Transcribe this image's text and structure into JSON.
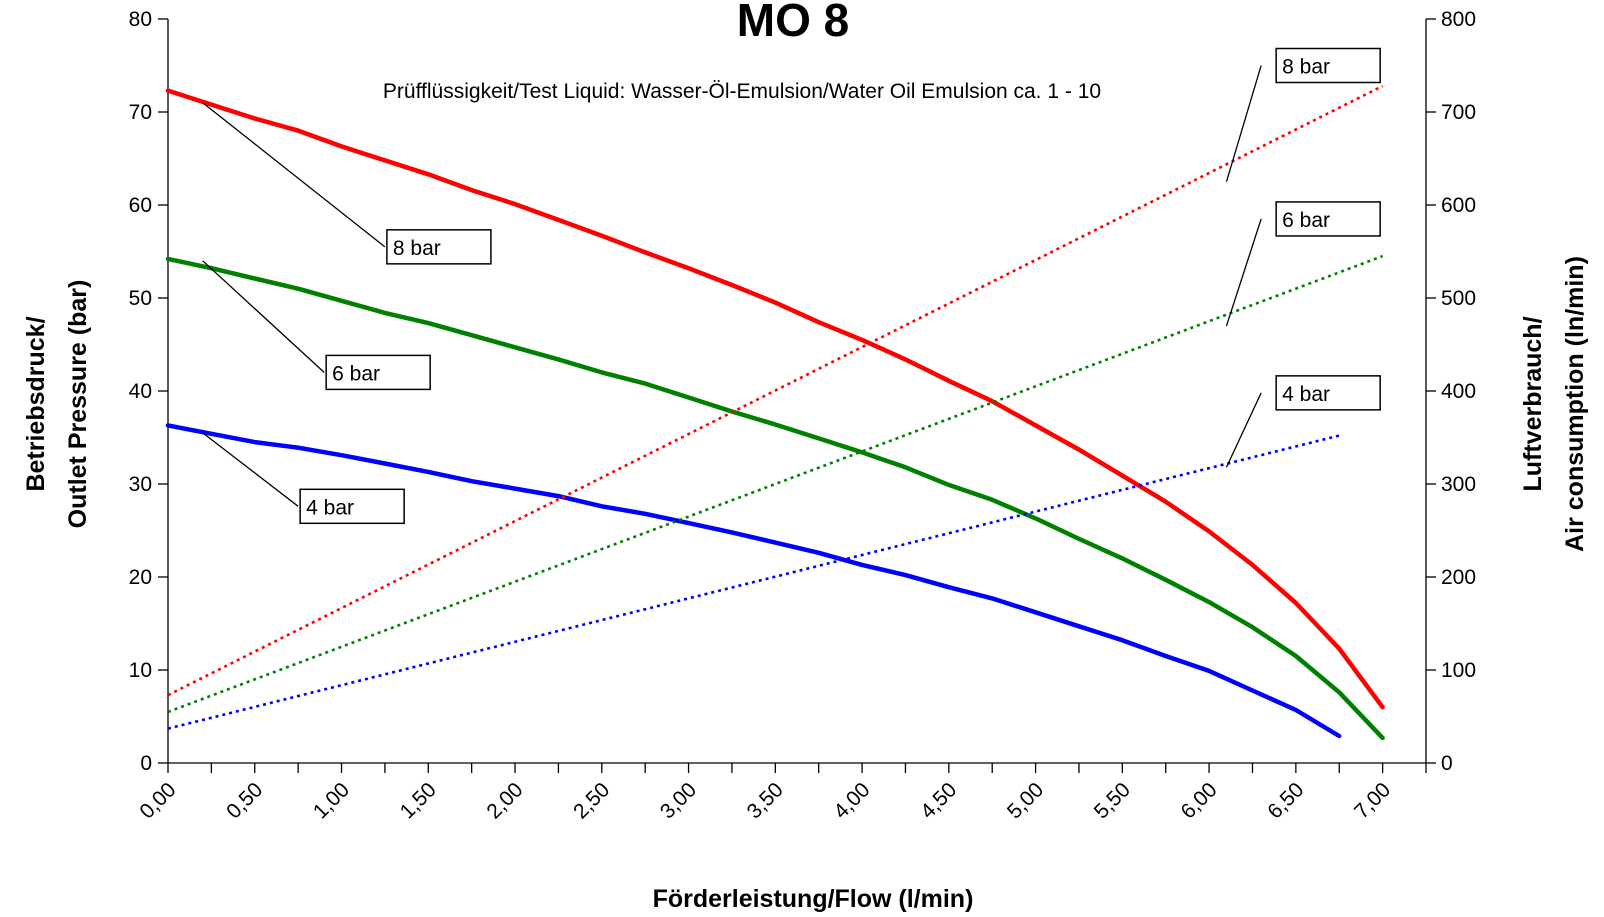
{
  "chart_data": {
    "type": "line",
    "title": "MO 8",
    "subtitle": "Prüfflüssigkeit/Test Liquid: Wasser-Öl-Emulsion/Water Oil Emulsion ca. 1 - 10",
    "xlabel": "Förderleistung/Flow (l/min)",
    "ylabel_left": [
      "Betriebsdruck/",
      "Outlet Pressure (bar)"
    ],
    "ylabel_right": [
      "Luftverbrauch/",
      "Air consumption (ln/min)"
    ],
    "xlim": [
      0,
      7.25
    ],
    "ylim_left": [
      0,
      80
    ],
    "ylim_right": [
      0,
      800
    ],
    "x_ticks": [
      "0,00",
      "0,50",
      "1,00",
      "1,50",
      "2,00",
      "2,50",
      "3,00",
      "3,50",
      "4,00",
      "4,50",
      "5,00",
      "5,50",
      "6,00",
      "6,50",
      "7,00"
    ],
    "y_left_ticks": [
      "0",
      "10",
      "20",
      "30",
      "40",
      "50",
      "60",
      "70",
      "80"
    ],
    "y_right_ticks": [
      "0",
      "100",
      "200",
      "300",
      "400",
      "500",
      "600",
      "700",
      "800"
    ],
    "grid": false,
    "series": [
      {
        "name": "8 bar",
        "axis": "left",
        "style": "solid",
        "color": "#ff0000",
        "x": [
          0,
          0.25,
          0.5,
          0.75,
          1,
          1.25,
          1.5,
          1.75,
          2,
          2.25,
          2.5,
          2.75,
          3,
          3.25,
          3.5,
          3.75,
          4,
          4.25,
          4.5,
          4.75,
          5,
          5.25,
          5.5,
          5.75,
          6,
          6.25,
          6.5,
          6.75,
          7
        ],
        "y": [
          72.3,
          70.8,
          69.3,
          68,
          66.3,
          64.8,
          63.3,
          61.6,
          60.1,
          58.4,
          56.7,
          54.9,
          53.2,
          51.4,
          49.5,
          47.4,
          45.5,
          43.4,
          41.1,
          38.9,
          36.3,
          33.7,
          30.9,
          28.1,
          24.9,
          21.3,
          17.2,
          12.3,
          6
        ]
      },
      {
        "name": "6 bar",
        "axis": "left",
        "style": "solid",
        "color": "#008000",
        "x": [
          0,
          0.25,
          0.5,
          0.75,
          1,
          1.25,
          1.5,
          1.75,
          2,
          2.25,
          2.5,
          2.75,
          3,
          3.25,
          3.5,
          3.75,
          4,
          4.25,
          4.5,
          4.75,
          5,
          5.25,
          5.5,
          5.75,
          6,
          6.25,
          6.5,
          6.75,
          7
        ],
        "y": [
          54.2,
          53.2,
          52.1,
          51,
          49.7,
          48.4,
          47.3,
          46,
          44.7,
          43.4,
          42,
          40.8,
          39.3,
          37.8,
          36.4,
          34.9,
          33.4,
          31.8,
          29.9,
          28.3,
          26.3,
          24.1,
          22,
          19.7,
          17.3,
          14.6,
          11.5,
          7.6,
          2.7
        ]
      },
      {
        "name": "4 bar",
        "axis": "left",
        "style": "solid",
        "color": "#0000ff",
        "x": [
          0,
          0.25,
          0.5,
          0.75,
          1,
          1.25,
          1.5,
          1.75,
          2,
          2.25,
          2.5,
          2.75,
          3,
          3.25,
          3.5,
          3.75,
          4,
          4.25,
          4.5,
          4.75,
          5,
          5.25,
          5.5,
          5.75,
          6,
          6.25,
          6.5,
          6.75
        ],
        "y": [
          36.3,
          35.4,
          34.5,
          33.9,
          33.1,
          32.2,
          31.3,
          30.3,
          29.5,
          28.7,
          27.6,
          26.8,
          25.8,
          24.8,
          23.7,
          22.6,
          21.3,
          20.2,
          18.9,
          17.7,
          16.2,
          14.7,
          13.2,
          11.5,
          9.9,
          7.8,
          5.7,
          2.9
        ]
      },
      {
        "name": "8 bar",
        "axis": "right",
        "style": "dotted",
        "color": "#ff0000",
        "x": [
          0,
          7
        ],
        "y": [
          73,
          728
        ]
      },
      {
        "name": "6 bar",
        "axis": "right",
        "style": "dotted",
        "color": "#008000",
        "x": [
          0,
          7
        ],
        "y": [
          55,
          545
        ]
      },
      {
        "name": "4 bar",
        "axis": "right",
        "style": "dotted",
        "color": "#0000ff",
        "x": [
          0,
          6.75
        ],
        "y": [
          37,
          352
        ]
      }
    ],
    "annotations": [
      {
        "text": "8 bar",
        "anchor_axis": "left",
        "anchor": [
          0.2,
          71
        ],
        "box_anchor": [
          1.25,
          55.5
        ]
      },
      {
        "text": "6 bar",
        "anchor_axis": "left",
        "anchor": [
          0.2,
          54
        ],
        "box_anchor": [
          0.9,
          42
        ]
      },
      {
        "text": "4 bar",
        "anchor_axis": "left",
        "anchor": [
          0.2,
          35.5
        ],
        "box_anchor": [
          0.75,
          27.6
        ]
      },
      {
        "text": "8 bar",
        "anchor_axis": "right",
        "anchor": [
          6.1,
          625
        ],
        "box_anchor": [
          6.3,
          750
        ]
      },
      {
        "text": "6 bar",
        "anchor_axis": "right",
        "anchor": [
          6.1,
          470
        ],
        "box_anchor": [
          6.3,
          585
        ]
      },
      {
        "text": "4 bar",
        "anchor_axis": "right",
        "anchor": [
          6.1,
          318
        ],
        "box_anchor": [
          6.3,
          398
        ]
      }
    ]
  }
}
